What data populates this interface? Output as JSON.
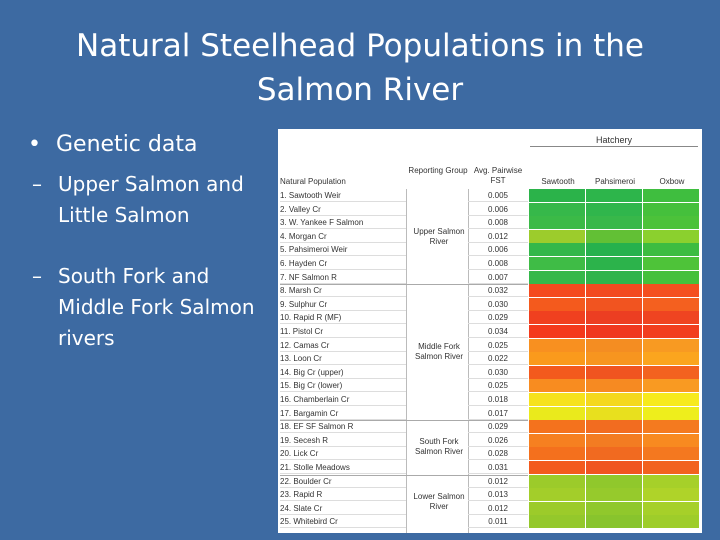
{
  "slide": {
    "title": "Natural Steelhead Populations in the Salmon River",
    "bullet": "Genetic data",
    "subbullets": [
      "Upper Salmon and Little Salmon",
      "South Fork and Middle Fork Salmon rivers"
    ]
  },
  "table": {
    "hatchery_label": "Hatchery",
    "headers": {
      "population": "Natural Population",
      "group": "Reporting Group",
      "fst": "Avg. Pairwise FST",
      "hatcheries": [
        "Sawtooth",
        "Pahsimeroi",
        "Oxbow"
      ]
    },
    "groups": [
      {
        "label": "Upper Salmon River",
        "rows": [
          {
            "name": "1. Sawtooth Weir",
            "fst": "0.005",
            "colors": [
              "#2bb34a",
              "#2db54b",
              "#3fbe3f"
            ]
          },
          {
            "name": "2. Valley Cr",
            "fst": "0.006",
            "colors": [
              "#36b84a",
              "#30b64c",
              "#45c03c"
            ]
          },
          {
            "name": "3. W. Yankee F Salmon",
            "fst": "0.008",
            "colors": [
              "#3bba47",
              "#38b84a",
              "#4cc23a"
            ]
          },
          {
            "name": "4. Morgan Cr",
            "fst": "0.012",
            "colors": [
              "#9ccc2c",
              "#62c035",
              "#8bd02e"
            ]
          },
          {
            "name": "5. Pahsimeroi Weir",
            "fst": "0.006",
            "colors": [
              "#33b74a",
              "#26b14d",
              "#3dbc41"
            ]
          },
          {
            "name": "6. Hayden Cr",
            "fst": "0.008",
            "colors": [
              "#3fbc46",
              "#2cb34b",
              "#4ec339"
            ]
          },
          {
            "name": "7. NF Salmon R",
            "fst": "0.007",
            "colors": [
              "#35b84a",
              "#2fb44b",
              "#45c03c"
            ]
          }
        ]
      },
      {
        "label": "Middle Fork Salmon River",
        "rows": [
          {
            "name": "8. Marsh Cr",
            "fst": "0.032",
            "colors": [
              "#f44a1e",
              "#f24a20",
              "#f44f1f"
            ]
          },
          {
            "name": "9. Sulphur Cr",
            "fst": "0.030",
            "colors": [
              "#f45a1d",
              "#f15420",
              "#f4601f"
            ]
          },
          {
            "name": "10. Rapid R (MF)",
            "fst": "0.029",
            "colors": [
              "#f0401f",
              "#ec3e22",
              "#ef4421"
            ]
          },
          {
            "name": "11. Pistol Cr",
            "fst": "0.034",
            "colors": [
              "#f43a1c",
              "#f0381f",
              "#f23e1e"
            ]
          },
          {
            "name": "12. Camas Cr",
            "fst": "0.025",
            "colors": [
              "#f89020",
              "#f48d22",
              "#f89a22"
            ]
          },
          {
            "name": "13. Loon Cr",
            "fst": "0.022",
            "colors": [
              "#fa9a1c",
              "#f7951f",
              "#fba51e"
            ]
          },
          {
            "name": "14. Big Cr (upper)",
            "fst": "0.030",
            "colors": [
              "#f35a1d",
              "#f05420",
              "#f3621f"
            ]
          },
          {
            "name": "15. Big Cr (lower)",
            "fst": "0.025",
            "colors": [
              "#f88c20",
              "#f68a22",
              "#f99a22"
            ]
          },
          {
            "name": "16. Chamberlain Cr",
            "fst": "0.018",
            "colors": [
              "#f6e21c",
              "#f4d81e",
              "#f7ea1c"
            ]
          },
          {
            "name": "17. Bargamin Cr",
            "fst": "0.017",
            "colors": [
              "#eaea1c",
              "#e8e01e",
              "#eeee1c"
            ]
          }
        ]
      },
      {
        "label": "South Fork Salmon River",
        "rows": [
          {
            "name": "18. EF SF Salmon R",
            "fst": "0.029",
            "colors": [
              "#f4721d",
              "#f26c20",
              "#f47a1f"
            ]
          },
          {
            "name": "19. Secesh R",
            "fst": "0.026",
            "colors": [
              "#f68020",
              "#f37c22",
              "#f88a20"
            ]
          },
          {
            "name": "20. Lick Cr",
            "fst": "0.028",
            "colors": [
              "#f4701d",
              "#f16a20",
              "#f4781f"
            ]
          },
          {
            "name": "21. Stolle Meadows",
            "fst": "0.031",
            "colors": [
              "#f35a1d",
              "#f05420",
              "#f2621f"
            ]
          }
        ]
      },
      {
        "label": "Lower Salmon River",
        "rows": [
          {
            "name": "22. Boulder Cr",
            "fst": "0.012",
            "colors": [
              "#9ccb2a",
              "#90c82c",
              "#a6d029"
            ]
          },
          {
            "name": "23. Rapid R",
            "fst": "0.013",
            "colors": [
              "#a3ce2a",
              "#96ca2c",
              "#afd329"
            ]
          },
          {
            "name": "24. Slate Cr",
            "fst": "0.012",
            "colors": [
              "#9ccb2a",
              "#90c82c",
              "#a6d029"
            ]
          },
          {
            "name": "25. Whitebird Cr",
            "fst": "0.011",
            "colors": [
              "#94c82b",
              "#88c42d",
              "#9ecd2a"
            ]
          }
        ]
      }
    ]
  }
}
